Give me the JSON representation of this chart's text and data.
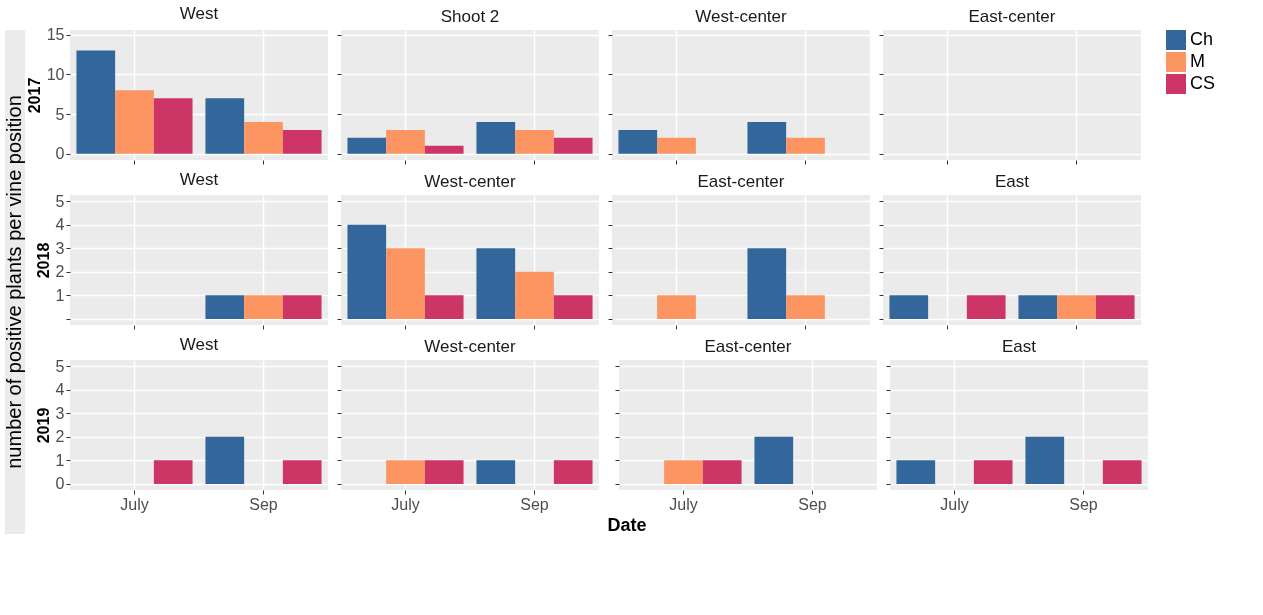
{
  "chart_data": [
    {
      "type": "bar",
      "title": "West",
      "ylabel": "2017",
      "categories": [
        "July",
        "Sep"
      ],
      "ylim": [
        -0.8,
        15.6
      ],
      "yticks": [
        0,
        5,
        10,
        15
      ],
      "grid": true,
      "tick_labels": "y",
      "legend": "right",
      "series": [
        {
          "name": "Ch",
          "color": "#33669a",
          "values": [
            13,
            7
          ]
        },
        {
          "name": "M",
          "color": "#fc9562",
          "values": [
            8,
            4
          ]
        },
        {
          "name": "CS",
          "color": "#cc3565",
          "values": [
            7,
            3
          ]
        }
      ]
    },
    {
      "type": "bar",
      "title": "Shoot 2",
      "categories": [
        "July",
        "Sep"
      ],
      "ylim": [
        -0.8,
        15.6
      ],
      "yticks": [
        0,
        5,
        10,
        15
      ],
      "grid": true,
      "tick_labels": false,
      "series": [
        {
          "name": "Ch",
          "color": "#33669a",
          "values": [
            2,
            4
          ]
        },
        {
          "name": "M",
          "color": "#fc9562",
          "values": [
            3,
            3
          ]
        },
        {
          "name": "CS",
          "color": "#cc3565",
          "values": [
            1,
            2
          ]
        }
      ]
    },
    {
      "type": "bar",
      "title": "West-center",
      "categories": [
        "July",
        "Sep"
      ],
      "ylim": [
        -0.8,
        15.6
      ],
      "yticks": [
        0,
        5,
        10,
        15
      ],
      "grid": true,
      "tick_labels": false,
      "series": [
        {
          "name": "Ch",
          "color": "#33669a",
          "values": [
            3,
            4
          ]
        },
        {
          "name": "M",
          "color": "#fc9562",
          "values": [
            2,
            2
          ]
        },
        {
          "name": "CS",
          "color": "#cc3565",
          "values": [
            0,
            0
          ]
        }
      ]
    },
    {
      "type": "bar",
      "title": "East-center",
      "categories": [
        "July",
        "Sep"
      ],
      "ylim": [
        -0.8,
        15.6
      ],
      "yticks": [
        0,
        5,
        10,
        15
      ],
      "grid": true,
      "tick_labels": false,
      "series": [
        {
          "name": "Ch",
          "color": "#33669a",
          "values": [
            0,
            0
          ]
        },
        {
          "name": "M",
          "color": "#fc9562",
          "values": [
            0,
            0
          ]
        },
        {
          "name": "CS",
          "color": "#cc3565",
          "values": [
            0,
            0
          ]
        }
      ]
    },
    {
      "type": "bar",
      "title": "West",
      "ylabel": "2018",
      "annotations": [
        "number of positive plants per vine position"
      ],
      "categories": [
        "July",
        "Sep"
      ],
      "ylim": [
        -0.26,
        5.26
      ],
      "yticks": [
        {
          "value": 0,
          "label": null
        },
        1,
        2,
        3,
        4,
        5
      ],
      "grid": true,
      "tick_labels": "y",
      "series": [
        {
          "name": "Ch",
          "color": "#33669a",
          "values": [
            0,
            1
          ]
        },
        {
          "name": "M",
          "color": "#fc9562",
          "values": [
            0,
            1
          ]
        },
        {
          "name": "CS",
          "color": "#cc3565",
          "values": [
            0,
            1
          ]
        }
      ]
    },
    {
      "type": "bar",
      "title": "West-center",
      "categories": [
        "July",
        "Sep"
      ],
      "ylim": [
        -0.26,
        5.26
      ],
      "yticks": [
        0,
        1,
        2,
        3,
        4,
        5
      ],
      "grid": true,
      "tick_labels": false,
      "series": [
        {
          "name": "Ch",
          "color": "#33669a",
          "values": [
            4,
            3
          ]
        },
        {
          "name": "M",
          "color": "#fc9562",
          "values": [
            3,
            2
          ]
        },
        {
          "name": "CS",
          "color": "#cc3565",
          "values": [
            1,
            1
          ]
        }
      ]
    },
    {
      "type": "bar",
      "title": "East-center",
      "categories": [
        "July",
        "Sep"
      ],
      "ylim": [
        -0.26,
        5.26
      ],
      "yticks": [
        0,
        1,
        2,
        3,
        4,
        5
      ],
      "grid": true,
      "tick_labels": false,
      "series": [
        {
          "name": "Ch",
          "color": "#33669a",
          "values": [
            0,
            3
          ]
        },
        {
          "name": "M",
          "color": "#fc9562",
          "values": [
            1,
            1
          ]
        },
        {
          "name": "CS",
          "color": "#cc3565",
          "values": [
            0,
            0
          ]
        }
      ]
    },
    {
      "type": "bar",
      "title": "East",
      "categories": [
        "July",
        "Sep"
      ],
      "ylim": [
        -0.26,
        5.26
      ],
      "yticks": [
        0,
        1,
        2,
        3,
        4,
        5
      ],
      "grid": true,
      "tick_labels": false,
      "series": [
        {
          "name": "Ch",
          "color": "#33669a",
          "values": [
            1,
            1
          ]
        },
        {
          "name": "M",
          "color": "#fc9562",
          "values": [
            0,
            1
          ]
        },
        {
          "name": "CS",
          "color": "#cc3565",
          "values": [
            1,
            1
          ]
        }
      ]
    },
    {
      "type": "bar",
      "title": "West",
      "ylabel": "2019",
      "categories": [
        "July",
        "Sep"
      ],
      "ylim": [
        -0.26,
        5.26
      ],
      "yticks": [
        0,
        1,
        2,
        3,
        4,
        5
      ],
      "grid": true,
      "series": [
        {
          "name": "Ch",
          "color": "#33669a",
          "values": [
            0,
            2
          ]
        },
        {
          "name": "M",
          "color": "#fc9562",
          "values": [
            0,
            0
          ]
        },
        {
          "name": "CS",
          "color": "#cc3565",
          "values": [
            1,
            1
          ]
        }
      ]
    },
    {
      "type": "bar",
      "title": "West-center",
      "categories": [
        "July",
        "Sep"
      ],
      "ylim": [
        -0.26,
        5.26
      ],
      "yticks": [
        0,
        1,
        2,
        3,
        4,
        5
      ],
      "grid": true,
      "tick_labels": "x",
      "series": [
        {
          "name": "Ch",
          "color": "#33669a",
          "values": [
            0,
            1
          ]
        },
        {
          "name": "M",
          "color": "#fc9562",
          "values": [
            1,
            0
          ]
        },
        {
          "name": "CS",
          "color": "#cc3565",
          "values": [
            1,
            1
          ]
        }
      ]
    },
    {
      "type": "bar",
      "title": "East-center",
      "xlabel": "Date",
      "categories": [
        "July",
        "Sep"
      ],
      "ylim": [
        -0.26,
        5.26
      ],
      "yticks": [
        0,
        1,
        2,
        3,
        4,
        5
      ],
      "grid": true,
      "tick_labels": "x",
      "series": [
        {
          "name": "Ch",
          "color": "#33669a",
          "values": [
            0,
            2
          ]
        },
        {
          "name": "M",
          "color": "#fc9562",
          "values": [
            1,
            0
          ]
        },
        {
          "name": "CS",
          "color": "#cc3565",
          "values": [
            1,
            0
          ]
        }
      ]
    },
    {
      "type": "bar",
      "title": "East",
      "categories": [
        "July",
        "Sep"
      ],
      "ylim": [
        -0.26,
        5.26
      ],
      "yticks": [
        0,
        1,
        2,
        3,
        4,
        5
      ],
      "grid": true,
      "tick_labels": "x",
      "series": [
        {
          "name": "Ch",
          "color": "#33669a",
          "values": [
            1,
            2
          ]
        },
        {
          "name": "M",
          "color": "#fc9562",
          "values": [
            0,
            0
          ]
        },
        {
          "name": "CS",
          "color": "#cc3565",
          "values": [
            1,
            1
          ]
        }
      ]
    }
  ]
}
